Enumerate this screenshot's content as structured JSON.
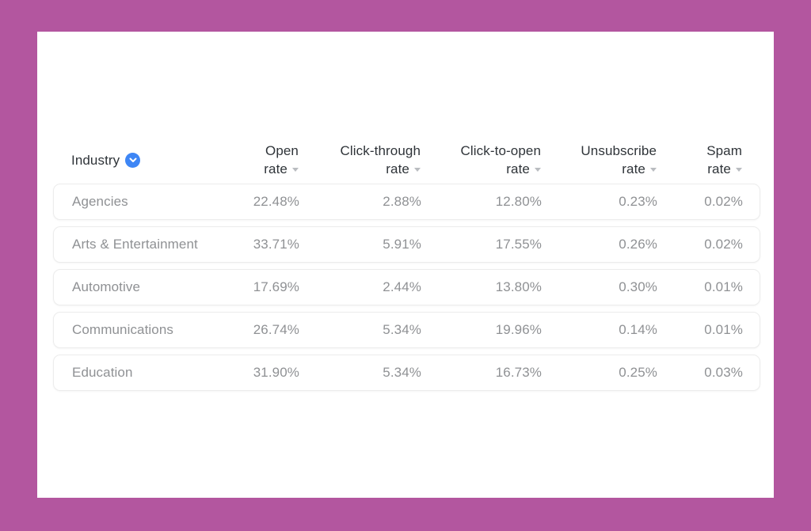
{
  "window": {
    "background_color": "#b3569f",
    "card_color": "#ffffff"
  },
  "colors": {
    "header_text": "#2f3439",
    "row_text": "#8f9194",
    "row_border": "#ececec",
    "sort_caret": "#b9bcc0",
    "industry_badge_blue": "#3e86f5"
  },
  "table": {
    "columns": [
      {
        "id": "industry",
        "label": "Industry",
        "label_lines": [
          "Industry"
        ],
        "align": "left",
        "sortable": false,
        "icon": "chevron-down-badge"
      },
      {
        "id": "open_rate",
        "label": "Open rate",
        "label_lines": [
          "Open",
          "rate"
        ],
        "align": "right",
        "sortable": true
      },
      {
        "id": "click_through_rate",
        "label": "Click-through rate",
        "label_lines": [
          "Click-through",
          "rate"
        ],
        "align": "right",
        "sortable": true
      },
      {
        "id": "click_to_open_rate",
        "label": "Click-to-open rate",
        "label_lines": [
          "Click-to-open",
          "rate"
        ],
        "align": "right",
        "sortable": true
      },
      {
        "id": "unsubscribe_rate",
        "label": "Unsubscribe rate",
        "label_lines": [
          "Unsubscribe",
          "rate"
        ],
        "align": "right",
        "sortable": true
      },
      {
        "id": "spam_rate",
        "label": "Spam rate",
        "label_lines": [
          "Spam",
          "rate"
        ],
        "align": "right",
        "sortable": true
      }
    ],
    "rows": [
      {
        "industry": "Agencies",
        "open_rate": "22.48%",
        "click_through_rate": "2.88%",
        "click_to_open_rate": "12.80%",
        "unsubscribe_rate": "0.23%",
        "spam_rate": "0.02%"
      },
      {
        "industry": "Arts & Entertainment",
        "open_rate": "33.71%",
        "click_through_rate": "5.91%",
        "click_to_open_rate": "17.55%",
        "unsubscribe_rate": "0.26%",
        "spam_rate": "0.02%"
      },
      {
        "industry": "Automotive",
        "open_rate": "17.69%",
        "click_through_rate": "2.44%",
        "click_to_open_rate": "13.80%",
        "unsubscribe_rate": "0.30%",
        "spam_rate": "0.01%"
      },
      {
        "industry": "Communications",
        "open_rate": "26.74%",
        "click_through_rate": "5.34%",
        "click_to_open_rate": "19.96%",
        "unsubscribe_rate": "0.14%",
        "spam_rate": "0.01%"
      },
      {
        "industry": "Education",
        "open_rate": "31.90%",
        "click_through_rate": "5.34%",
        "click_to_open_rate": "16.73%",
        "unsubscribe_rate": "0.25%",
        "spam_rate": "0.03%"
      }
    ]
  }
}
